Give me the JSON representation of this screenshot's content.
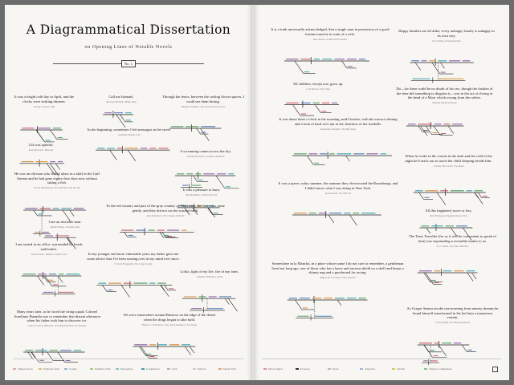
{
  "title": "A Diagrammatical Dissertation",
  "subtitle": "on Opening Lines of Notable Novels",
  "plate": "No. 1",
  "left_quotes": [
    {
      "text": "It was a bright cold day in April, and the clocks were striking thirteen.",
      "author": "George Orwell, 1984"
    },
    {
      "text": "Call me Ishmael.",
      "author": "Herman Melville, Moby-Dick"
    },
    {
      "text": "Through the fence, between the curling flower spaces, I could see them hitting.",
      "author": "William Faulkner, The Sound and the Fury"
    },
    {
      "text": "In the beginning, sometimes I left messages in the street.",
      "author": "Jonathan Safran Foer"
    },
    {
      "text": "124 was spiteful.",
      "author": "Toni Morrison, Beloved"
    },
    {
      "text": "A screaming comes across the sky.",
      "author": "Thomas Pynchon, Gravity's Rainbow"
    },
    {
      "text": "He was an old man who fished alone in a skiff in the Gulf Stream and he had gone eighty-four days now without taking a fish.",
      "author": "Ernest Hemingway, The Old Man and the Sea"
    },
    {
      "text": "It was a pleasure to burn.",
      "author": "Ray Bradbury, Fahrenheit 451"
    },
    {
      "text": "To the red country and part of the gray country of Oklahoma, the last rains came gently, and they did not cut the scarred earth.",
      "author": "John Steinbeck, The Grapes of Wrath"
    },
    {
      "text": "I am an invisible man.",
      "author": "Ralph Ellison, Invisible Man"
    },
    {
      "text": "I am seated in an office, surrounded by heads and bodies.",
      "author": "David Foster Wallace, Infinite Jest"
    },
    {
      "text": "In my younger and more vulnerable years my father gave me some advice that I've been turning over in my mind ever since.",
      "author": "F. Scott Fitzgerald, The Great Gatsby"
    },
    {
      "text": "Lolita, light of my life, fire of my loins.",
      "author": "Vladimir Nabokov, Lolita"
    },
    {
      "text": "Many years later, as he faced the firing squad, Colonel Aureliano Buendía was to remember that distant afternoon when his father took him to discover ice.",
      "author": "Gabriel García Márquez, One Hundred Years of Solitude"
    },
    {
      "text": "We were somewhere around Barstow on the edge of the desert when the drugs began to take hold.",
      "author": "Hunter S. Thompson, Fear and Loathing in Las Vegas"
    }
  ],
  "right_quotes": [
    {
      "text": "It is a truth universally acknowledged, that a single man in possession of a good fortune must be in want of a wife.",
      "author": "Jane Austen, Pride and Prejudice"
    },
    {
      "text": "Happy families are all alike; every unhappy family is unhappy in its own way.",
      "author": "Leo Tolstoy, Anna Karenina"
    },
    {
      "text": "All children, except one, grow up.",
      "author": "J. M. Barrie, Peter Pan"
    },
    {
      "text": "Do—for there could be no doubt of his sex, though the fashion of the time did something to disguise it—was in the act of slicing at the head of a Moor which swung from the rafters.",
      "author": "Virginia Woolf, Orlando"
    },
    {
      "text": "It was about three o'clock in the morning, mid-October, with the sun not shining and a look of hard wet rain in the clearness of the foothills.",
      "author": "Raymond Chandler, The Big Sleep"
    },
    {
      "text": "When he woke in the woods in the dark and the cold of the night he'd reach out to touch the child sleeping beside him.",
      "author": "Cormac McCarthy, The Road"
    },
    {
      "text": "It was a queer, sultry summer, the summer they electrocuted the Rosenbergs, and I didn't know what I was doing in New York.",
      "author": "Sylvia Plath, The Bell Jar"
    },
    {
      "text": "All this happened, more or less.",
      "author": "Kurt Vonnegut, Slaughterhouse-Five"
    },
    {
      "text": "The Time Traveller (for so it will be convenient to speak of him) was expounding a recondite matter to us.",
      "author": "H. G. Wells, The Time Machine"
    },
    {
      "text": "Somewhere in la Mancha, in a place whose name I do not care to remember, a gentleman lived not long ago, one of those who has a lance and ancient shield on a shelf and keeps a skinny nag and a greyhound for racing.",
      "author": "Miguel de Cervantes, Don Quixote"
    },
    {
      "text": "As Gregor Samsa awoke one morning from uneasy dreams he found himself transformed in his bed into a monstrous vermin.",
      "author": "Franz Kafka, The Metamorphosis"
    }
  ],
  "left_legend": [
    {
      "label": "Subject Noun",
      "color": "#e3a9a1"
    },
    {
      "label": "Predicate Verb",
      "color": "#d9c26a"
    },
    {
      "label": "Copula",
      "color": "#9cb2c7"
    },
    {
      "label": "Infinitive Verb",
      "color": "#a8c98a"
    },
    {
      "label": "Preposition",
      "color": "#8fc1c6"
    },
    {
      "label": "Conjunction",
      "color": "#3a9fb0"
    },
    {
      "label": "Verb",
      "color": "#c8a3c9"
    },
    {
      "label": "Particle",
      "color": "#c9c9c9"
    },
    {
      "label": "Modal Verb",
      "color": "#e6a36b"
    }
  ],
  "right_legend": [
    {
      "label": "Direct Object",
      "color": "#e08ea0"
    },
    {
      "label": "Pronoun",
      "color": "#333333"
    },
    {
      "label": "Noun",
      "color": "#b9b9b9"
    },
    {
      "label": "Adjective",
      "color": "#9fb6d6"
    },
    {
      "label": "Adverb",
      "color": "#d4c46a"
    },
    {
      "label": "Subject Complement",
      "color": "#8fbf8f"
    }
  ],
  "colors": {
    "red": "#c8566a",
    "green": "#4f9a62",
    "blue": "#4a76b8",
    "orange": "#d58b3a",
    "purple": "#8b5ca8",
    "teal": "#3a9fb0",
    "ink": "#222222"
  }
}
